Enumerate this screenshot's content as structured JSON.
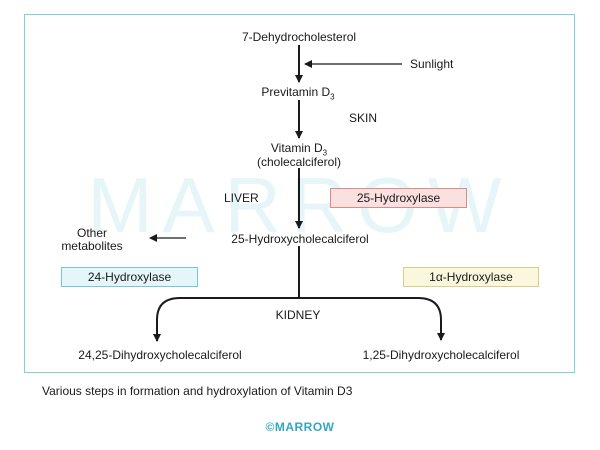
{
  "diagram": {
    "watermark": "MARROW",
    "nodes": {
      "dehydrocholesterol": "7-Dehydrocholesterol",
      "sunlight": "Sunlight",
      "previtamin": "Previtamin D",
      "previtamin_sub": "3",
      "skin": "SKIN",
      "vitamin_d3": "Vitamin D",
      "vitamin_d3_sub": "3",
      "cholecalciferol": "(cholecalciferol)",
      "liver": "LIVER",
      "other_metabolites_1": "Other",
      "other_metabolites_2": "metabolites",
      "hydroxycholecalciferol_25": "25-Hydroxycholecalciferol",
      "kidney": "KIDNEY",
      "dihydroxy_24_25": "24,25-Dihydroxycholecalciferol",
      "dihydroxy_1_25": "1,25-Dihydroxycholecalciferol"
    },
    "enzymes": {
      "hydroxylase_25": "25-Hydroxylase",
      "hydroxylase_24": "24-Hydroxylase",
      "hydroxylase_1a": "1α-Hydroxylase"
    },
    "colors": {
      "frame": "#7fd0dd",
      "enzyme_25_bg": "#fbe0e0",
      "enzyme_24_bg": "#e4f6fa",
      "enzyme_1a_bg": "#fbf7dd",
      "brand": "#35a6bf"
    }
  },
  "caption": "Various steps in formation and hydroxylation of Vitamin D3",
  "brand": "©MARROW"
}
